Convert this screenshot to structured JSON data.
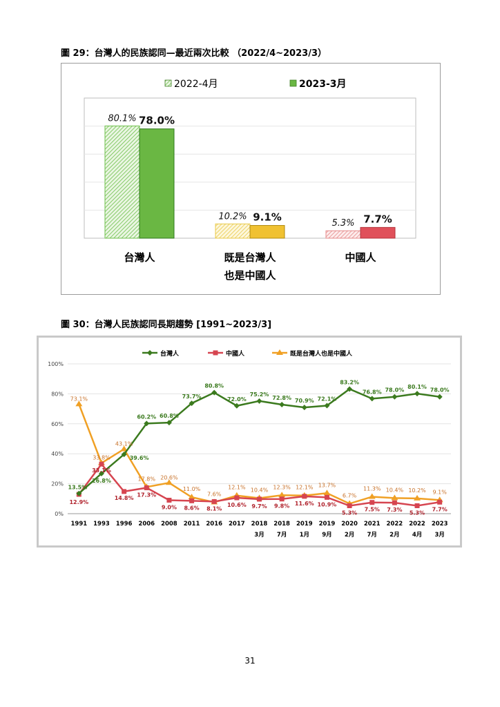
{
  "page": {
    "number": "31"
  },
  "figure29": {
    "title": "圖 29：台灣人的民族認同—最近兩次比較 （2022/4~2023/3）"
  },
  "figure30": {
    "title": "圖 30：台灣人民族認同長期趨勢 [1991~2023/3]"
  },
  "chart_data": [
    {
      "type": "bar",
      "categories": [
        "台灣人",
        "既是台灣人\n也是中國人",
        "中國人"
      ],
      "category_lines": [
        [
          "台灣人"
        ],
        [
          "既是台灣人",
          "也是中國人"
        ],
        [
          "中國人"
        ]
      ],
      "ylim": [
        0,
        100
      ],
      "grid": true,
      "legend_position": "top",
      "series": [
        {
          "name": "2022-4月",
          "values": [
            80.1,
            10.2,
            5.3
          ],
          "labels": [
            "80.1%",
            "10.2%",
            "5.3%"
          ],
          "style": "hatched",
          "colors": [
            "#6cbf4a",
            "#e9c948",
            "#e58a8a"
          ]
        },
        {
          "name": "2023-3月",
          "values": [
            78.0,
            9.1,
            7.7
          ],
          "labels": [
            "78.0%",
            "9.1%",
            "7.7%"
          ],
          "style": "solid",
          "colors": [
            "#6ab743",
            "#f0c131",
            "#e0505a"
          ]
        }
      ]
    },
    {
      "type": "line",
      "x": [
        "1991",
        "1993",
        "1996",
        "2006",
        "2008",
        "2011",
        "2016",
        "2017",
        "2018",
        "2018",
        "2019",
        "2019",
        "2020",
        "2021",
        "2022",
        "2022",
        "2023"
      ],
      "x_sublabels": [
        "",
        "",
        "",
        "",
        "",
        "",
        "",
        "",
        "3月",
        "7月",
        "1月",
        "9月",
        "2月",
        "7月",
        "2月",
        "4月",
        "3月"
      ],
      "ylim": [
        0,
        100
      ],
      "yticks": [
        "0%",
        "20%",
        "40%",
        "60%",
        "80%",
        "100%"
      ],
      "grid": true,
      "legend_position": "top",
      "series": [
        {
          "name": "台灣人",
          "color": "#3b7a1e",
          "marker": "diamond",
          "values": [
            13.5,
            26.8,
            39.6,
            60.2,
            60.8,
            73.7,
            80.8,
            72.0,
            75.2,
            72.8,
            70.9,
            72.1,
            83.2,
            76.8,
            78.0,
            80.1,
            78.0
          ],
          "labels": [
            "13.5%",
            "26.8%",
            "39.6%",
            "60.2%",
            "60.8%",
            "73.7%",
            "80.8%",
            "72.0%",
            "75.2%",
            "72.8%",
            "70.9%",
            "72.1%",
            "83.2%",
            "76.8%",
            "78.0%",
            "80.1%",
            "78.0%"
          ]
        },
        {
          "name": "中國人",
          "color": "#d64550",
          "marker": "square",
          "values": [
            12.9,
            33.1,
            14.8,
            17.3,
            9.0,
            8.6,
            8.1,
            10.6,
            9.7,
            9.8,
            11.6,
            10.9,
            5.3,
            7.5,
            7.3,
            5.3,
            7.7
          ],
          "labels": [
            "12.9%",
            "33.1%",
            "14.8%",
            "17.3%",
            "9.0%",
            "8.6%",
            "8.1%",
            "10.6%",
            "9.7%",
            "9.8%",
            "11.6%",
            "10.9%",
            "5.3%",
            "7.5%",
            "7.3%",
            "5.3%",
            "7.7%"
          ]
        },
        {
          "name": "既是台灣人也是中國人",
          "color": "#f0a024",
          "marker": "triangle",
          "values": [
            73.1,
            33.8,
            43.1,
            17.8,
            20.6,
            11.0,
            7.6,
            12.1,
            10.4,
            12.3,
            12.1,
            13.7,
            6.7,
            11.3,
            10.4,
            10.2,
            9.1
          ],
          "labels": [
            "73.1%",
            "33.8%",
            "43.1%",
            "17.8%",
            "20.6%",
            "11.0%",
            "7.6%",
            "12.1%",
            "10.4%",
            "12.3%",
            "12.1%",
            "13.7%",
            "6.7%",
            "11.3%",
            "10.4%",
            "10.2%",
            "9.1%"
          ]
        }
      ]
    }
  ]
}
